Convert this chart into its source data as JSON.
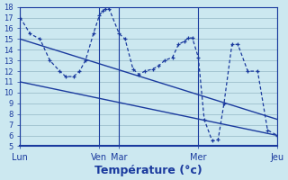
{
  "background_color": "#cce8f0",
  "grid_color": "#9dbfcc",
  "line_color": "#1a3a9e",
  "xlabel": "Température (°c)",
  "xlabel_fontsize": 9,
  "day_labels": [
    "Lun",
    "Ven",
    "Mar",
    "Mer",
    "Jeu"
  ],
  "day_positions": [
    0,
    4,
    5,
    9,
    13
  ],
  "vline_positions": [
    0,
    4,
    5,
    9,
    13
  ],
  "ylim": [
    5,
    18
  ],
  "xlim": [
    0,
    13
  ],
  "trend1": {
    "x": [
      0,
      13
    ],
    "y": [
      15.0,
      7.5
    ]
  },
  "trend2": {
    "x": [
      0,
      13
    ],
    "y": [
      11.0,
      6.0
    ]
  },
  "temp_x": [
    0,
    0.5,
    1,
    1.5,
    2,
    2.3,
    2.7,
    3,
    3.3,
    3.7,
    4,
    4.15,
    4.3,
    4.5,
    5,
    5.3,
    5.7,
    6,
    6.3,
    6.7,
    7,
    7.3,
    7.7,
    8,
    8.3,
    8.5,
    8.7,
    9,
    9.3,
    9.7,
    10,
    10.3,
    10.7,
    11,
    11.5,
    12,
    12.5,
    13
  ],
  "temp_y": [
    17,
    15.5,
    15,
    13,
    12,
    11.5,
    11.5,
    12,
    13,
    15.5,
    17.2,
    17.6,
    17.8,
    17.8,
    15.5,
    15,
    12.2,
    11.7,
    12.0,
    12.2,
    12.5,
    13.0,
    13.3,
    14.5,
    14.8,
    15.1,
    15.1,
    13.3,
    7.5,
    5.5,
    5.6,
    9.0,
    14.5,
    14.5,
    12.0,
    12.0,
    6.5,
    6.0
  ]
}
